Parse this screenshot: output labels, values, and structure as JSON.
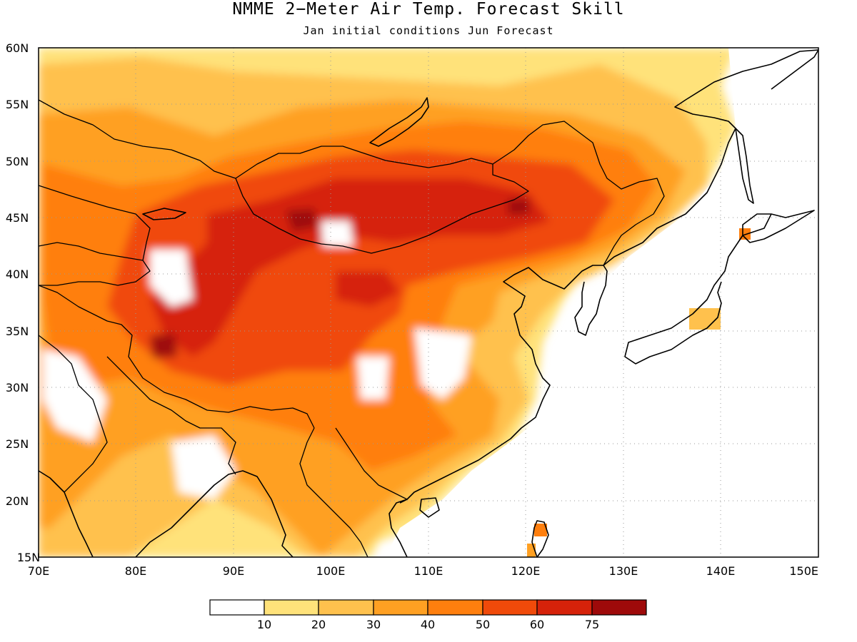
{
  "title": "NMME 2−Meter Air Temp. Forecast Skill",
  "subtitle": "Jan initial conditions  Jun Forecast",
  "colors": {
    "levels": [
      "#ffffff",
      "#ffe27a",
      "#ffc14d",
      "#ffa022",
      "#ff7f0e",
      "#f04a0a",
      "#d6220a",
      "#9e0a0a"
    ],
    "coast": "#000000",
    "grid": "#9a9a9a"
  },
  "chart_data": {
    "type": "heatmap",
    "xlabel": "",
    "ylabel": "",
    "xlim": [
      70,
      150
    ],
    "ylim": [
      15,
      60
    ],
    "x_ticks": [
      "70E",
      "80E",
      "90E",
      "100E",
      "110E",
      "120E",
      "130E",
      "140E",
      "150E"
    ],
    "y_ticks": [
      "15N",
      "20N",
      "25N",
      "30N",
      "35N",
      "40N",
      "45N",
      "50N",
      "55N",
      "60N"
    ],
    "legend": {
      "placement": "bottom",
      "boundaries": [
        "10",
        "20",
        "30",
        "40",
        "50",
        "60",
        "75"
      ]
    },
    "grid": true
  }
}
